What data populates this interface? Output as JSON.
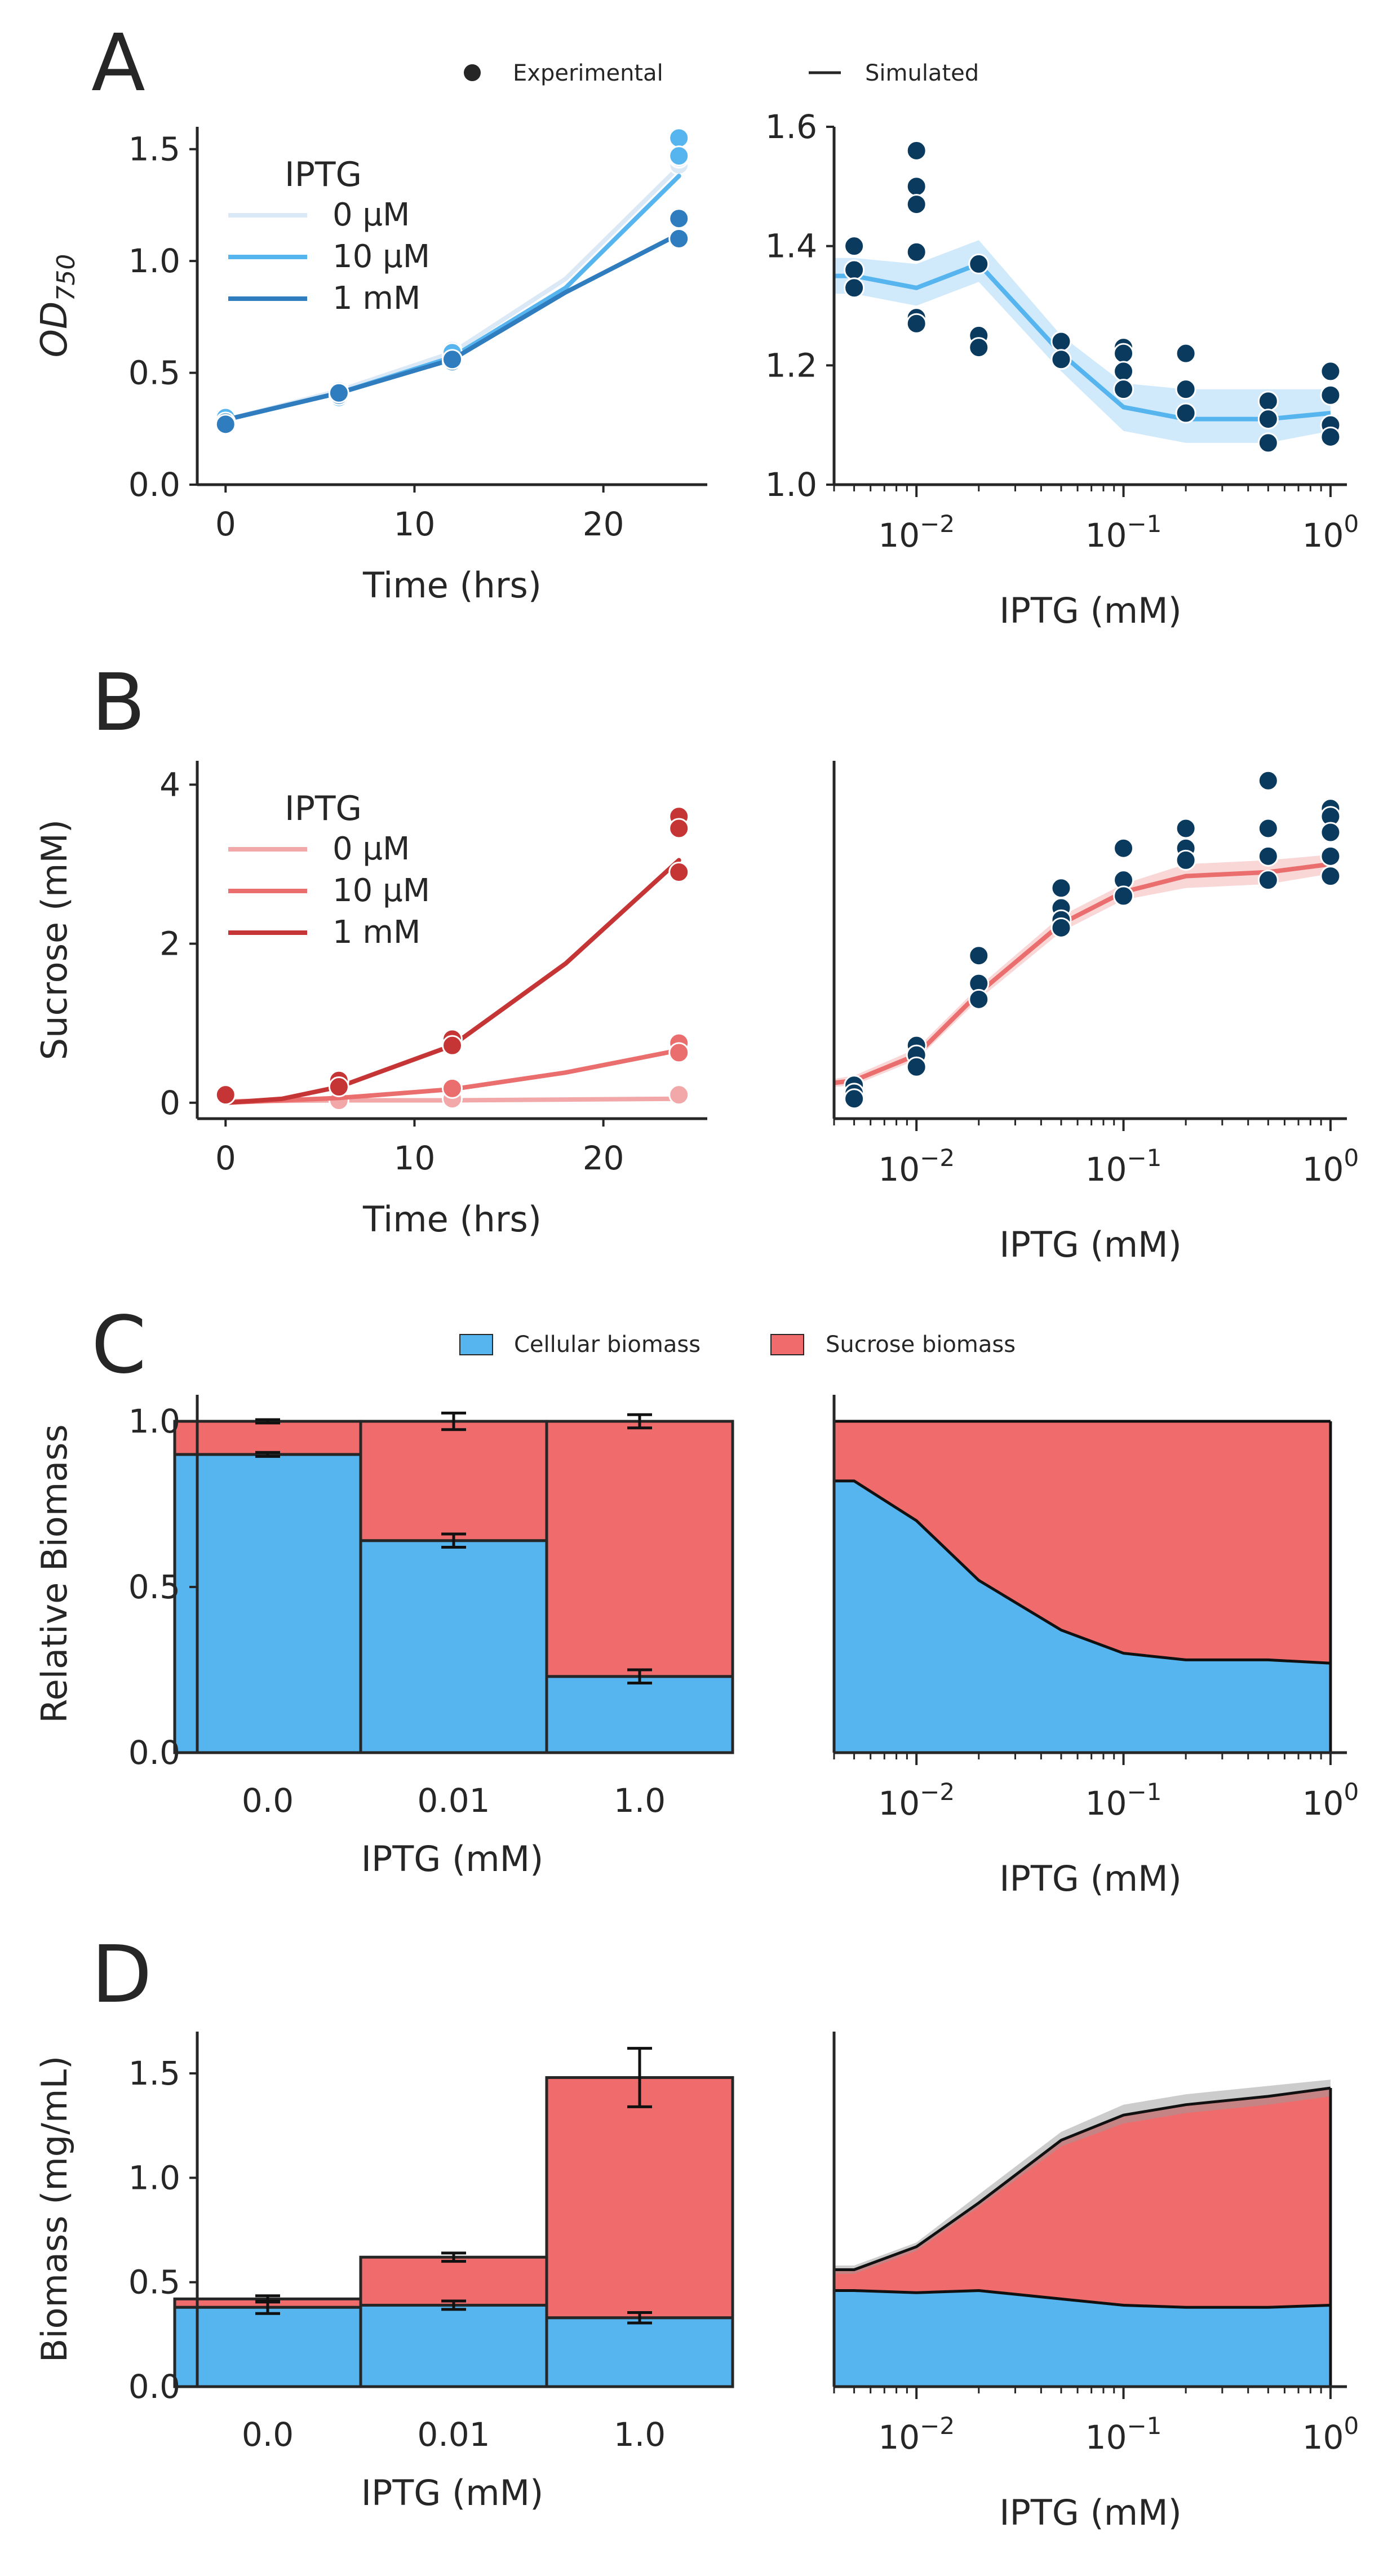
{
  "colors": {
    "od_light": "#dbe9f6",
    "od_mid": "#56b4ef",
    "od_dark": "#2f7dbf",
    "dot_navy": "#0b3a5f",
    "suc_light": "#f2a8a8",
    "suc_mid": "#eb6e6e",
    "suc_dark": "#c63535",
    "cell_blue": "#56b4ef",
    "sucrose_red": "#f06c6c",
    "band_gray": "#9a9a9a",
    "axis": "#262626"
  },
  "global_legend_top": {
    "experimental_label": "Experimental",
    "simulated_label": "Simulated"
  },
  "global_legend_c": {
    "cellular_label": "Cellular biomass",
    "sucrose_label": "Sucrose biomass"
  },
  "x_log_ticks": [
    {
      "value": 0.01,
      "base": "10",
      "exp": "−2"
    },
    {
      "value": 0.1,
      "base": "10",
      "exp": "−1"
    },
    {
      "value": 1,
      "base": "10",
      "exp": "0"
    }
  ],
  "chart_data": [
    {
      "panel": "A",
      "panel_label": "A",
      "type": "scatter",
      "xlabel": "Time (hrs)",
      "ylabel_main": "OD",
      "ylabel_sub": "750",
      "xlim": [
        -1.5,
        25.5
      ],
      "ylim": [
        0,
        1.6
      ],
      "xticks": [
        0,
        10,
        20
      ],
      "yticks": [
        0.0,
        0.5,
        1.0,
        1.5
      ],
      "ytick_labels": [
        "0.0",
        "0.5",
        "1.0",
        "1.5"
      ],
      "legend_title": "IPTG",
      "legend_placement": "top-left",
      "series": [
        {
          "name": "0 μM",
          "color_key": "od_light",
          "points": [
            [
              0,
              0.29
            ],
            [
              0,
              0.28
            ],
            [
              6,
              0.4
            ],
            [
              6,
              0.42
            ],
            [
              12,
              0.6
            ],
            [
              12,
              0.58
            ],
            [
              24,
              1.43
            ],
            [
              24,
              1.46
            ]
          ],
          "line": [
            [
              0,
              0.29
            ],
            [
              6,
              0.42
            ],
            [
              12,
              0.59
            ],
            [
              18,
              0.92
            ],
            [
              24,
              1.42
            ]
          ]
        },
        {
          "name": "10 μM",
          "color_key": "od_mid",
          "points": [
            [
              0,
              0.28
            ],
            [
              0,
              0.3
            ],
            [
              6,
              0.41
            ],
            [
              6,
              0.39
            ],
            [
              12,
              0.57
            ],
            [
              12,
              0.59
            ],
            [
              24,
              1.55
            ],
            [
              24,
              1.47
            ]
          ],
          "line": [
            [
              0,
              0.29
            ],
            [
              6,
              0.41
            ],
            [
              12,
              0.57
            ],
            [
              18,
              0.88
            ],
            [
              24,
              1.38
            ]
          ]
        },
        {
          "name": "1 mM",
          "color_key": "od_dark",
          "points": [
            [
              0,
              0.28
            ],
            [
              0,
              0.27
            ],
            [
              6,
              0.4
            ],
            [
              6,
              0.41
            ],
            [
              12,
              0.55
            ],
            [
              12,
              0.56
            ],
            [
              24,
              1.1
            ],
            [
              24,
              1.19
            ]
          ],
          "line": [
            [
              0,
              0.29
            ],
            [
              6,
              0.41
            ],
            [
              12,
              0.56
            ],
            [
              18,
              0.86
            ],
            [
              24,
              1.12
            ]
          ]
        }
      ]
    },
    {
      "panel": "A-right",
      "type": "scatter",
      "xscale": "log",
      "xlabel": "IPTG (mM)",
      "xlim": [
        0.004,
        1.2
      ],
      "ylim": [
        1.0,
        1.6
      ],
      "yticks": [
        1.0,
        1.2,
        1.4,
        1.6
      ],
      "ytick_labels": [
        "1.0",
        "1.2",
        "1.4",
        "1.6"
      ],
      "points": [
        [
          0.005,
          1.4
        ],
        [
          0.005,
          1.36
        ],
        [
          0.005,
          1.33
        ],
        [
          0.01,
          1.56
        ],
        [
          0.01,
          1.5
        ],
        [
          0.01,
          1.47
        ],
        [
          0.01,
          1.39
        ],
        [
          0.01,
          1.28
        ],
        [
          0.01,
          1.27
        ],
        [
          0.02,
          1.37
        ],
        [
          0.02,
          1.25
        ],
        [
          0.02,
          1.23
        ],
        [
          0.05,
          1.24
        ],
        [
          0.05,
          1.21
        ],
        [
          0.1,
          1.23
        ],
        [
          0.1,
          1.22
        ],
        [
          0.1,
          1.19
        ],
        [
          0.1,
          1.16
        ],
        [
          0.2,
          1.22
        ],
        [
          0.2,
          1.16
        ],
        [
          0.2,
          1.12
        ],
        [
          0.5,
          1.14
        ],
        [
          0.5,
          1.11
        ],
        [
          0.5,
          1.07
        ],
        [
          1.0,
          1.19
        ],
        [
          1.0,
          1.15
        ],
        [
          1.0,
          1.1
        ],
        [
          1.0,
          1.08
        ]
      ],
      "line": [
        [
          0.004,
          1.35
        ],
        [
          0.005,
          1.35
        ],
        [
          0.01,
          1.33
        ],
        [
          0.02,
          1.37
        ],
        [
          0.05,
          1.22
        ],
        [
          0.1,
          1.13
        ],
        [
          0.2,
          1.11
        ],
        [
          0.5,
          1.11
        ],
        [
          1.0,
          1.12
        ]
      ],
      "band_low": [
        1.32,
        1.32,
        1.3,
        1.34,
        1.19,
        1.09,
        1.07,
        1.07,
        1.09
      ],
      "band_high": [
        1.38,
        1.38,
        1.37,
        1.41,
        1.25,
        1.17,
        1.16,
        1.16,
        1.16
      ]
    },
    {
      "panel": "B",
      "panel_label": "B",
      "type": "scatter",
      "xlabel": "Time (hrs)",
      "ylabel": "Sucrose (mM)",
      "xlim": [
        -1.5,
        25.5
      ],
      "ylim": [
        -0.2,
        4.3
      ],
      "xticks": [
        0,
        10,
        20
      ],
      "yticks": [
        0,
        2,
        4
      ],
      "ytick_labels": [
        "0",
        "2",
        "4"
      ],
      "legend_title": "IPTG",
      "legend_placement": "top-left",
      "series": [
        {
          "name": "0 μM",
          "color_key": "suc_light",
          "points": [
            [
              0,
              0.1
            ],
            [
              6,
              0.03
            ],
            [
              12,
              0.05
            ],
            [
              24,
              0.1
            ]
          ],
          "line": [
            [
              0,
              0.02
            ],
            [
              6,
              0.03
            ],
            [
              12,
              0.03
            ],
            [
              18,
              0.04
            ],
            [
              24,
              0.05
            ]
          ]
        },
        {
          "name": "10 μM",
          "color_key": "suc_mid",
          "points": [
            [
              0,
              0.12
            ],
            [
              6,
              0.24
            ],
            [
              12,
              0.18
            ],
            [
              24,
              0.75
            ],
            [
              24,
              0.63
            ]
          ],
          "line": [
            [
              0,
              0.0
            ],
            [
              6,
              0.06
            ],
            [
              12,
              0.17
            ],
            [
              18,
              0.38
            ],
            [
              24,
              0.66
            ]
          ]
        },
        {
          "name": "1 mM",
          "color_key": "suc_dark",
          "points": [
            [
              0,
              0.1
            ],
            [
              6,
              0.28
            ],
            [
              6,
              0.2
            ],
            [
              12,
              0.8
            ],
            [
              12,
              0.72
            ],
            [
              24,
              3.6
            ],
            [
              24,
              3.45
            ],
            [
              24,
              2.9
            ]
          ],
          "line": [
            [
              0,
              0.0
            ],
            [
              3,
              0.05
            ],
            [
              6,
              0.2
            ],
            [
              12,
              0.72
            ],
            [
              18,
              1.75
            ],
            [
              24,
              3.05
            ]
          ]
        }
      ]
    },
    {
      "panel": "B-right",
      "type": "scatter",
      "xscale": "log",
      "xlabel": "IPTG (mM)",
      "xlim": [
        0.004,
        1.2
      ],
      "ylim": [
        -0.2,
        4.3
      ],
      "points": [
        [
          0.005,
          0.22
        ],
        [
          0.005,
          0.12
        ],
        [
          0.005,
          0.05
        ],
        [
          0.01,
          0.72
        ],
        [
          0.01,
          0.6
        ],
        [
          0.01,
          0.45
        ],
        [
          0.02,
          1.85
        ],
        [
          0.02,
          1.5
        ],
        [
          0.02,
          1.3
        ],
        [
          0.05,
          2.7
        ],
        [
          0.05,
          2.45
        ],
        [
          0.05,
          2.3
        ],
        [
          0.05,
          2.2
        ],
        [
          0.1,
          3.2
        ],
        [
          0.1,
          2.8
        ],
        [
          0.1,
          2.6
        ],
        [
          0.2,
          3.45
        ],
        [
          0.2,
          3.2
        ],
        [
          0.2,
          3.05
        ],
        [
          0.5,
          4.05
        ],
        [
          0.5,
          3.45
        ],
        [
          0.5,
          3.1
        ],
        [
          0.5,
          2.8
        ],
        [
          1.0,
          3.7
        ],
        [
          1.0,
          3.6
        ],
        [
          1.0,
          3.4
        ],
        [
          1.0,
          3.1
        ],
        [
          1.0,
          2.85
        ]
      ],
      "line": [
        [
          0.004,
          0.25
        ],
        [
          0.005,
          0.28
        ],
        [
          0.01,
          0.6
        ],
        [
          0.02,
          1.38
        ],
        [
          0.05,
          2.25
        ],
        [
          0.1,
          2.65
        ],
        [
          0.2,
          2.85
        ],
        [
          0.5,
          2.9
        ],
        [
          1.0,
          3.0
        ]
      ],
      "band_low": [
        0.2,
        0.22,
        0.54,
        1.3,
        2.15,
        2.55,
        2.7,
        2.75,
        2.88
      ],
      "band_high": [
        0.3,
        0.34,
        0.68,
        1.46,
        2.35,
        2.75,
        3.0,
        3.05,
        3.12
      ]
    },
    {
      "panel": "C",
      "panel_label": "C",
      "type": "bar",
      "stacked": true,
      "xlabel": "IPTG (mM)",
      "ylabel": "Relative Biomass",
      "categories": [
        "0.0",
        "0.01",
        "1.0"
      ],
      "ylim": [
        0,
        1.08
      ],
      "yticks": [
        0.0,
        0.5,
        1.0
      ],
      "ytick_labels": [
        "0.0",
        "0.5",
        "1.0"
      ],
      "series": [
        {
          "name": "Cellular biomass",
          "color_key": "cell_blue",
          "values": [
            0.9,
            0.64,
            0.23
          ],
          "errors": [
            0.006,
            0.02,
            0.02
          ]
        },
        {
          "name": "Sucrose biomass",
          "color_key": "sucrose_red",
          "values": [
            0.1,
            0.36,
            0.77
          ],
          "errors": [
            0.005,
            0.025,
            0.02
          ]
        }
      ]
    },
    {
      "panel": "C-right",
      "type": "area",
      "stacked": true,
      "xscale": "log",
      "xlabel": "IPTG (mM)",
      "xlim": [
        0.004,
        1.2
      ],
      "ylim": [
        0,
        1.08
      ],
      "x": [
        0.004,
        0.005,
        0.01,
        0.02,
        0.05,
        0.1,
        0.2,
        0.5,
        1.0
      ],
      "series": [
        {
          "name": "Cellular biomass",
          "color_key": "cell_blue",
          "values": [
            0.82,
            0.82,
            0.7,
            0.52,
            0.37,
            0.3,
            0.28,
            0.28,
            0.27
          ]
        },
        {
          "name": "Sucrose biomass",
          "color_key": "sucrose_red",
          "values": [
            0.18,
            0.18,
            0.3,
            0.48,
            0.63,
            0.7,
            0.72,
            0.72,
            0.73
          ]
        }
      ]
    },
    {
      "panel": "D",
      "panel_label": "D",
      "type": "bar",
      "stacked": true,
      "xlabel": "IPTG (mM)",
      "ylabel": "Biomass (mg/mL)",
      "categories": [
        "0.0",
        "0.01",
        "1.0"
      ],
      "ylim": [
        0,
        1.7
      ],
      "yticks": [
        0.0,
        0.5,
        1.0,
        1.5
      ],
      "ytick_labels": [
        "0.0",
        "0.5",
        "1.0",
        "1.5"
      ],
      "series": [
        {
          "name": "Cellular biomass",
          "color_key": "cell_blue",
          "values": [
            0.38,
            0.39,
            0.33
          ],
          "errors": [
            0.03,
            0.02,
            0.025
          ]
        },
        {
          "name": "Sucrose biomass",
          "color_key": "sucrose_red",
          "values": [
            0.04,
            0.23,
            1.15
          ],
          "errors": [
            0.015,
            0.02,
            0.14
          ]
        }
      ]
    },
    {
      "panel": "D-right",
      "type": "area",
      "stacked": true,
      "xscale": "log",
      "xlabel": "IPTG (mM)",
      "xlim": [
        0.004,
        1.2
      ],
      "ylim": [
        0,
        1.7
      ],
      "x": [
        0.004,
        0.005,
        0.01,
        0.02,
        0.05,
        0.1,
        0.2,
        0.5,
        1.0
      ],
      "series": [
        {
          "name": "Cellular biomass",
          "color_key": "cell_blue",
          "values": [
            0.46,
            0.46,
            0.45,
            0.46,
            0.42,
            0.39,
            0.38,
            0.38,
            0.39
          ]
        },
        {
          "name": "Sucrose biomass",
          "color_key": "sucrose_red",
          "values": [
            0.1,
            0.1,
            0.22,
            0.42,
            0.76,
            0.91,
            0.97,
            1.01,
            1.04
          ]
        }
      ],
      "band_low": [
        0.54,
        0.54,
        0.65,
        0.86,
        1.15,
        1.26,
        1.31,
        1.35,
        1.39
      ],
      "band_high": [
        0.58,
        0.58,
        0.69,
        0.92,
        1.22,
        1.35,
        1.4,
        1.44,
        1.47
      ]
    }
  ]
}
